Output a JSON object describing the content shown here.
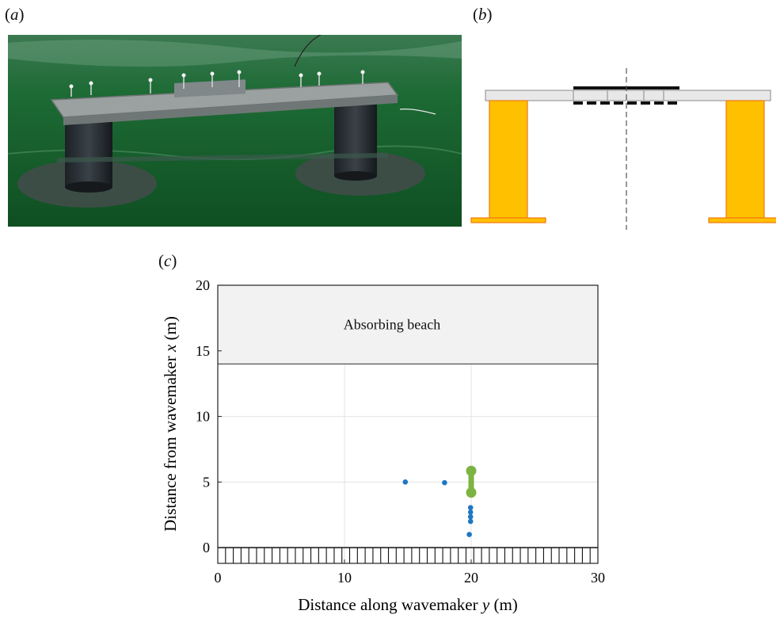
{
  "panels": {
    "a": "a",
    "b": "b",
    "c": "c"
  },
  "colors": {
    "pillar": "#FFC000",
    "pillar_edge": "#F07A10",
    "sensor": "#1f77c4",
    "model": "#7cb342",
    "beach_fill": "#f2f2f2"
  },
  "chart_data": {
    "type": "scatter",
    "xlabel_main": "Distance along wavemaker ",
    "xlabel_var": "y",
    "xlabel_unit": " (m)",
    "ylabel_main": "Distance from wavemaker ",
    "ylabel_var": "x",
    "ylabel_unit": " (m)",
    "xlim": [
      0,
      30
    ],
    "ylim": [
      -1.2,
      20
    ],
    "xticks": [
      0,
      10,
      20,
      30
    ],
    "yticks": [
      0,
      5,
      10,
      15,
      20
    ],
    "grid": true,
    "beach": {
      "label": "Absorbing beach",
      "x_start": 14,
      "x_end": 20
    },
    "wave_gauges": [
      {
        "y": 14.8,
        "x": 5.0
      },
      {
        "y": 17.9,
        "x": 4.95
      },
      {
        "y": 19.95,
        "x": 3.05
      },
      {
        "y": 19.95,
        "x": 2.7
      },
      {
        "y": 19.95,
        "x": 2.35
      },
      {
        "y": 19.95,
        "x": 2.0
      },
      {
        "y": 19.85,
        "x": 1.0
      }
    ],
    "model": {
      "y": 20.0,
      "x_start": 4.2,
      "x_end": 5.85
    }
  }
}
